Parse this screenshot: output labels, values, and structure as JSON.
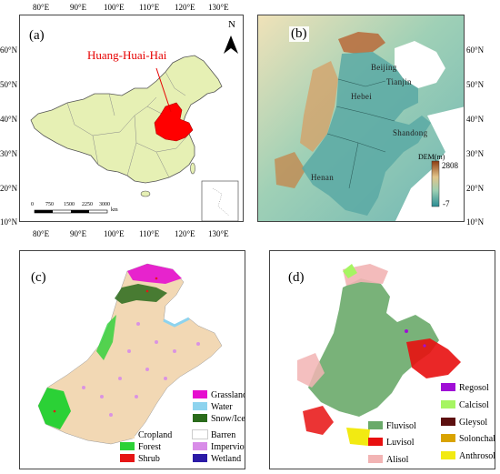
{
  "panels": {
    "a": {
      "label": "(a)",
      "region_label": "Huang-Huai-Hai",
      "north": "N",
      "top_ticks": [
        "80°E",
        "90°E",
        "100°E",
        "110°E",
        "120°E",
        "130°E"
      ],
      "bottom_ticks": [
        "80°E",
        "90°E",
        "100°E",
        "110°E",
        "120°E",
        "130°E"
      ],
      "left_ticks": [
        "60°N",
        "50°N",
        "40°N",
        "30°N",
        "20°N",
        "10°N"
      ],
      "scale_numbers": [
        "0",
        "750",
        "1500",
        "2250",
        "3000"
      ],
      "scale_unit": "km",
      "colors": {
        "country": "#e6f0b4",
        "region": "#ff0000",
        "label": "#e60000"
      }
    },
    "b": {
      "label": "(b)",
      "right_ticks": [
        "60°N",
        "50°N",
        "40°N",
        "30°N",
        "20°N",
        "10°N"
      ],
      "cities": [
        "Beijing",
        "Tianjin",
        "Hebei",
        "Shandong",
        "Henan"
      ],
      "dem_title": "DEM(m)",
      "dem_max": "2808",
      "dem_min": "-7",
      "colors": {
        "low": "#2a8c93",
        "high": "#8c3d12"
      }
    },
    "c": {
      "label": "(c)",
      "legend": [
        {
          "name": "Grassland",
          "color": "#e60fcf"
        },
        {
          "name": "Water",
          "color": "#8dd3ee"
        },
        {
          "name": "Snow/Ice",
          "color": "#2a6b1b"
        },
        {
          "name": "Barren",
          "color": "#ffffff"
        },
        {
          "name": "Impervious",
          "color": "#d88ce8"
        },
        {
          "name": "Wetland",
          "color": "#2b1aa6"
        },
        {
          "name": "Cropland",
          "color": "#f2d8b4"
        },
        {
          "name": "Forest",
          "color": "#2bd136"
        },
        {
          "name": "Shrub",
          "color": "#e61515"
        }
      ]
    },
    "d": {
      "label": "(d)",
      "legend": [
        {
          "name": "Regosol",
          "color": "#a00fd6"
        },
        {
          "name": "Calcisol",
          "color": "#a6f562"
        },
        {
          "name": "Gleysol",
          "color": "#5c0f0f"
        },
        {
          "name": "Solonchak",
          "color": "#d9a300"
        },
        {
          "name": "Anthrosol",
          "color": "#f2ea12"
        },
        {
          "name": "Fluvisol",
          "color": "#6aaa6a"
        },
        {
          "name": "Luvisol",
          "color": "#e81010"
        },
        {
          "name": "Alisol",
          "color": "#f2b4b4"
        }
      ]
    }
  }
}
